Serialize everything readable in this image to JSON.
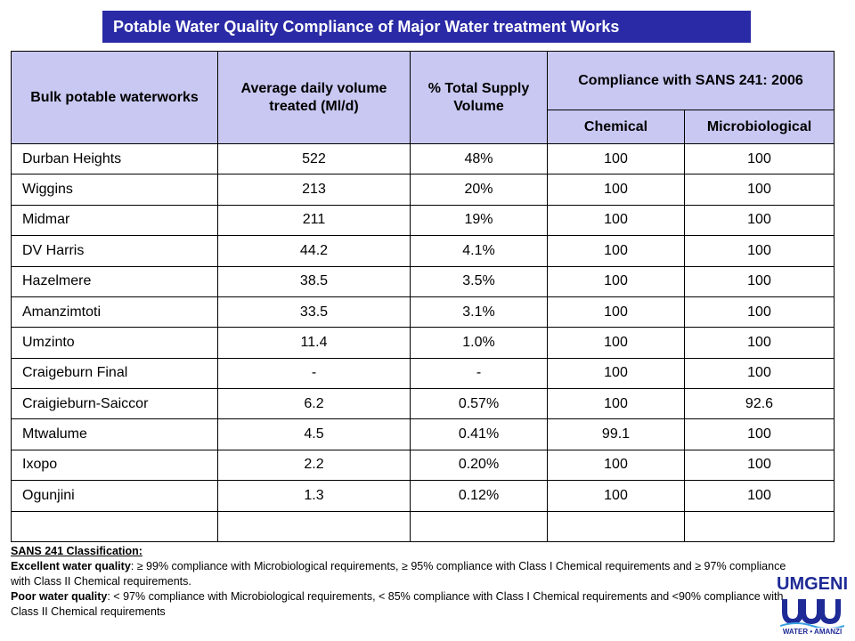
{
  "title": "Potable Water Quality Compliance of Major Water treatment Works",
  "table": {
    "headers": {
      "works": "Bulk potable waterworks",
      "volume": "Average daily volume treated (Ml/d)",
      "supply": "% Total Supply Volume",
      "compliance": "Compliance with SANS 241: 2006",
      "chemical": "Chemical",
      "micro": "Microbiological"
    },
    "rows": [
      {
        "name": "Durban Heights",
        "volume": "522",
        "supply": "48%",
        "chemical": "100",
        "micro": "100"
      },
      {
        "name": "Wiggins",
        "volume": "213",
        "supply": "20%",
        "chemical": "100",
        "micro": "100"
      },
      {
        "name": "Midmar",
        "volume": "211",
        "supply": "19%",
        "chemical": "100",
        "micro": "100"
      },
      {
        "name": "DV Harris",
        "volume": "44.2",
        "supply": "4.1%",
        "chemical": "100",
        "micro": "100"
      },
      {
        "name": "Hazelmere",
        "volume": "38.5",
        "supply": "3.5%",
        "chemical": "100",
        "micro": "100"
      },
      {
        "name": "Amanzimtoti",
        "volume": "33.5",
        "supply": "3.1%",
        "chemical": "100",
        "micro": "100"
      },
      {
        "name": "Umzinto",
        "volume": "11.4",
        "supply": "1.0%",
        "chemical": "100",
        "micro": "100"
      },
      {
        "name": "Craigeburn Final",
        "volume": "-",
        "supply": "-",
        "chemical": "100",
        "micro": "100"
      },
      {
        "name": "Craigieburn-Saiccor",
        "volume": "6.2",
        "supply": "0.57%",
        "chemical": "100",
        "micro": "92.6"
      },
      {
        "name": "Mtwalume",
        "volume": "4.5",
        "supply": "0.41%",
        "chemical": "99.1",
        "micro": "100"
      },
      {
        "name": "Ixopo",
        "volume": "2.2",
        "supply": "0.20%",
        "chemical": "100",
        "micro": "100"
      },
      {
        "name": "Ogunjini",
        "volume": "1.3",
        "supply": "0.12%",
        "chemical": "100",
        "micro": "100"
      },
      {
        "name": "",
        "volume": "",
        "supply": "",
        "chemical": "",
        "micro": ""
      }
    ]
  },
  "notes": {
    "heading": "SANS 241 Classification:",
    "excellent_label": "Excellent water quality",
    "excellent_text": ": ≥ 99% compliance with Microbiological requirements, ≥ 95% compliance with Class I Chemical requirements and ≥ 97% compliance with Class II Chemical requirements.",
    "poor_label": "Poor water quality",
    "poor_text": ": < 97% compliance with Microbiological requirements, < 85% compliance with Class I Chemical requirements and <90% compliance with Class II Chemical requirements"
  },
  "logo": {
    "name": "UMGENI",
    "tagline": "WATER • AMANZI",
    "color": "#1e2a96"
  },
  "colors": {
    "title_bg": "#2a2aa6",
    "header_bg": "#c8c8f2"
  }
}
